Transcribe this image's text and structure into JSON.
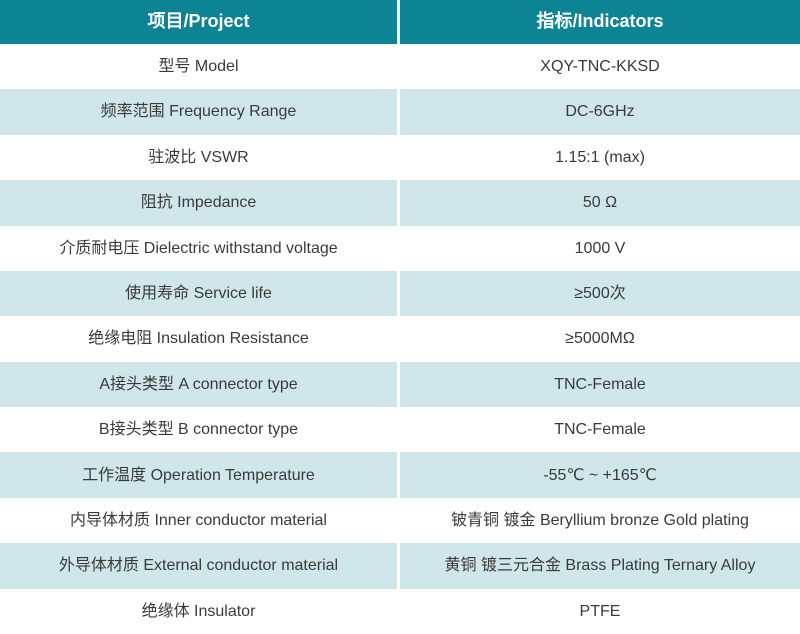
{
  "table": {
    "header": {
      "project_label": "项目/Project",
      "indicator_label": "指标/Indicators"
    },
    "rows": [
      {
        "project": "型号 Model",
        "indicator": "XQY-TNC-KKSD"
      },
      {
        "project": "频率范围 Frequency Range",
        "indicator": "DC-6GHz"
      },
      {
        "project": "驻波比 VSWR",
        "indicator": "1.15:1 (max)"
      },
      {
        "project": "阻抗 Impedance",
        "indicator": "50 Ω"
      },
      {
        "project": "介质耐电压 Dielectric withstand voltage",
        "indicator": "1000 V"
      },
      {
        "project": "使用寿命 Service life",
        "indicator": "≥500次"
      },
      {
        "project": "绝缘电阻 Insulation Resistance",
        "indicator": "≥5000MΩ"
      },
      {
        "project": "A接头类型 A connector type",
        "indicator": "TNC-Female"
      },
      {
        "project": "B接头类型 B connector type",
        "indicator": "TNC-Female"
      },
      {
        "project": "工作温度 Operation Temperature",
        "indicator": "-55℃ ~ +165℃"
      },
      {
        "project": "内导体材质 Inner conductor material",
        "indicator": "铍青铜 镀金 Beryllium bronze Gold plating"
      },
      {
        "project": "外导体材质 External conductor material",
        "indicator": "黄铜 镀三元合金 Brass Plating Ternary Alloy"
      },
      {
        "project": "绝缘体 Insulator",
        "indicator": "PTFE"
      }
    ],
    "colors": {
      "header_bg": "#0d8493",
      "header_text": "#ffffff",
      "row_bg": "#ffffff",
      "row_alt_bg": "#cfe6ea",
      "body_text": "#3a3a3a",
      "divider": "#ffffff"
    }
  }
}
